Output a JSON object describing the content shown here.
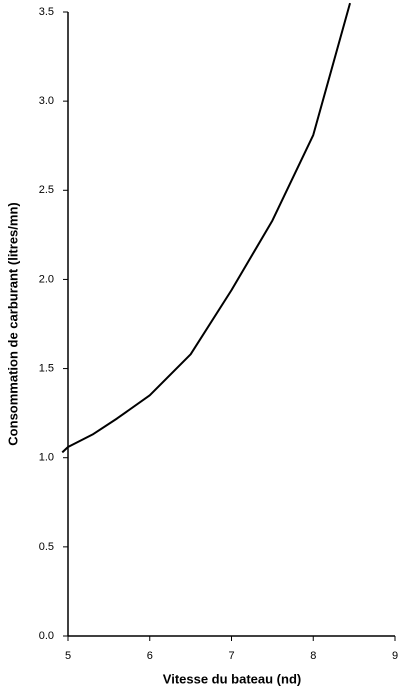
{
  "chart_data": {
    "type": "line",
    "xlabel": "Vitesse du bateau (nd)",
    "ylabel": "Consommation de carburant (litres/mn)",
    "x": [
      4.93,
      5,
      5.3,
      5.6,
      6,
      6.5,
      7,
      7.5,
      8,
      8.45
    ],
    "series": [
      {
        "color": "#000000",
        "values": [
          1.03,
          1.06,
          1.13,
          1.22,
          1.35,
          1.58,
          1.94,
          2.33,
          2.81,
          3.55
        ]
      }
    ],
    "xlim": [
      5,
      9
    ],
    "xticks": [
      5,
      6,
      7,
      8,
      9
    ],
    "ylim": [
      0,
      3.5
    ],
    "yticks": [
      {
        "value": 0,
        "label": "0.0"
      },
      0.5,
      {
        "value": 1,
        "label": "1.0"
      },
      1.5,
      {
        "value": 2,
        "label": "2.0"
      },
      2.5,
      {
        "value": 3,
        "label": "3.0"
      },
      3.5
    ],
    "grid": false
  }
}
